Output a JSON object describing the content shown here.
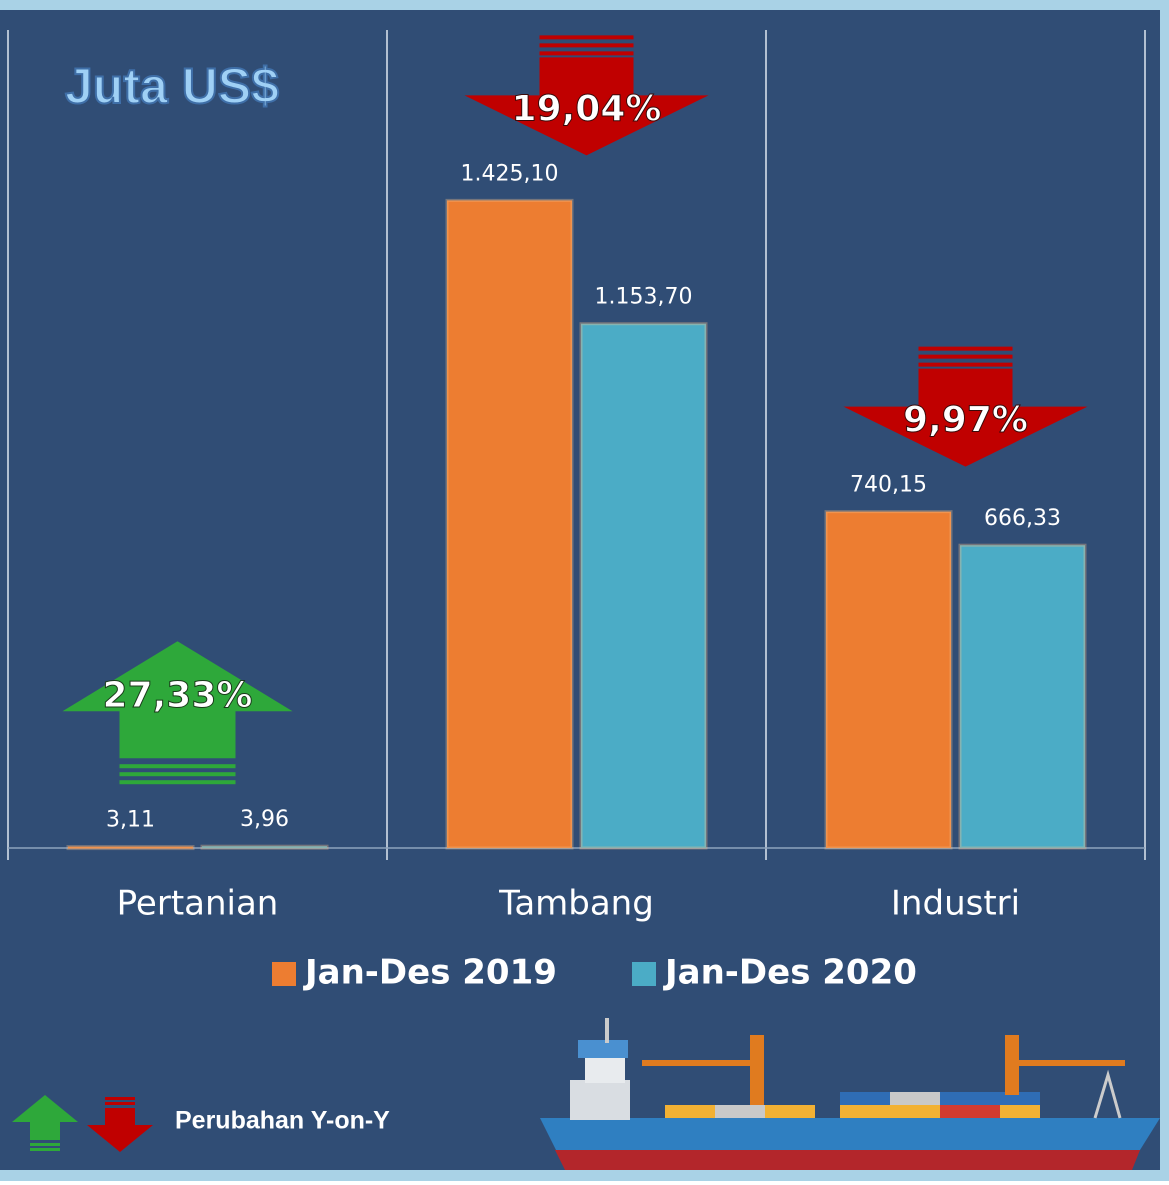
{
  "chart_data": {
    "type": "bar",
    "title": "Juta US$",
    "categories": [
      "Pertanian",
      "Tambang",
      "Industri"
    ],
    "series": [
      {
        "name": "Jan-Des 2019",
        "color": "#ed7d31",
        "values": [
          3.11,
          1425.1,
          740.15
        ],
        "value_labels": [
          "3,11",
          "1.425,10",
          "740,15"
        ]
      },
      {
        "name": "Jan-Des 2020",
        "color": "#4bacc6",
        "values": [
          3.96,
          1153.7,
          666.33
        ],
        "value_labels": [
          "3,96",
          "1.153,70",
          "666,33"
        ]
      }
    ],
    "ylim": [
      0,
      1800
    ],
    "changes": [
      {
        "value": 27.33,
        "label": "27,33%"
      },
      {
        "value": -19.04,
        "label": "19,04%"
      },
      {
        "value": -9.97,
        "label": "9,97%"
      }
    ],
    "up_color": "#2ea83a",
    "down_color": "#c00000",
    "change_note": "Perubahan Y-on-Y"
  }
}
